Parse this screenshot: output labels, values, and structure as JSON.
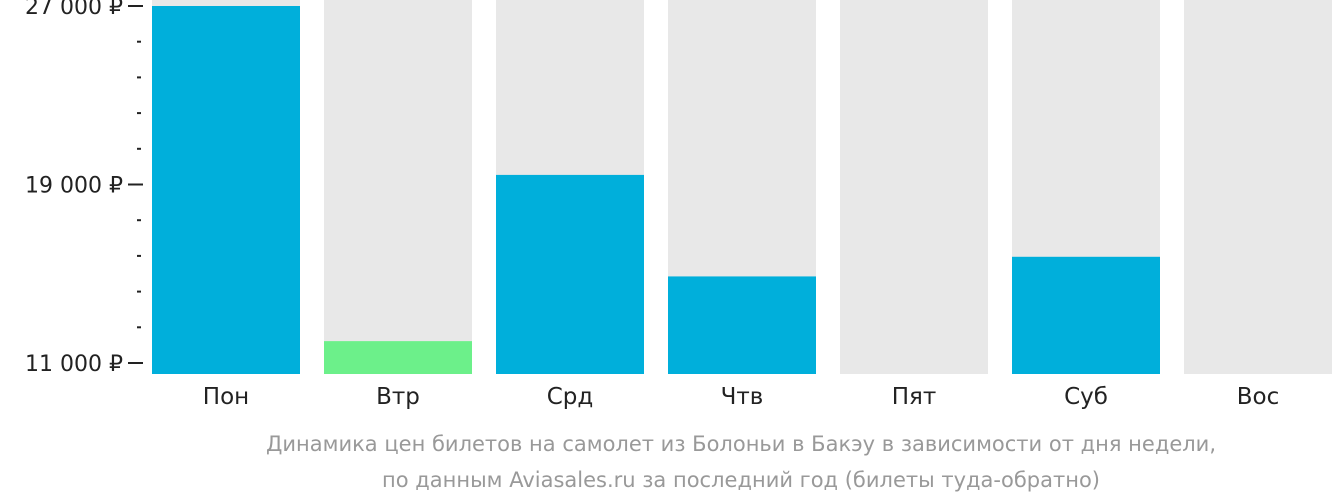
{
  "chart_data": {
    "type": "bar",
    "categories": [
      "Пон",
      "Втр",
      "Срд",
      "Чтв",
      "Пят",
      "Суб",
      "Вос"
    ],
    "values": [
      27000,
      11980,
      19430,
      14880,
      null,
      15760,
      null
    ],
    "bar_status": [
      "normal",
      "min",
      "normal",
      "normal",
      "none",
      "normal",
      "none"
    ],
    "ylim": [
      11000,
      27000
    ],
    "yticks": [
      {
        "value": 27000,
        "label": "27 000 ₽"
      },
      {
        "value": 19000,
        "label": "19 000 ₽"
      },
      {
        "value": 11000,
        "label": "11 000 ₽"
      }
    ],
    "minor_tick_step": 1600,
    "colors": {
      "bar": "#00afdb",
      "min_bar": "#6cf08a",
      "track": "#e8e8e8",
      "axis": "#222222"
    },
    "caption": [
      "Динамика цен билетов на самолет из Болоньи в Бакэу в зависимости от дня недели,",
      "по данным Aviasales.ru за последний год (билеты туда-обратно)"
    ]
  }
}
